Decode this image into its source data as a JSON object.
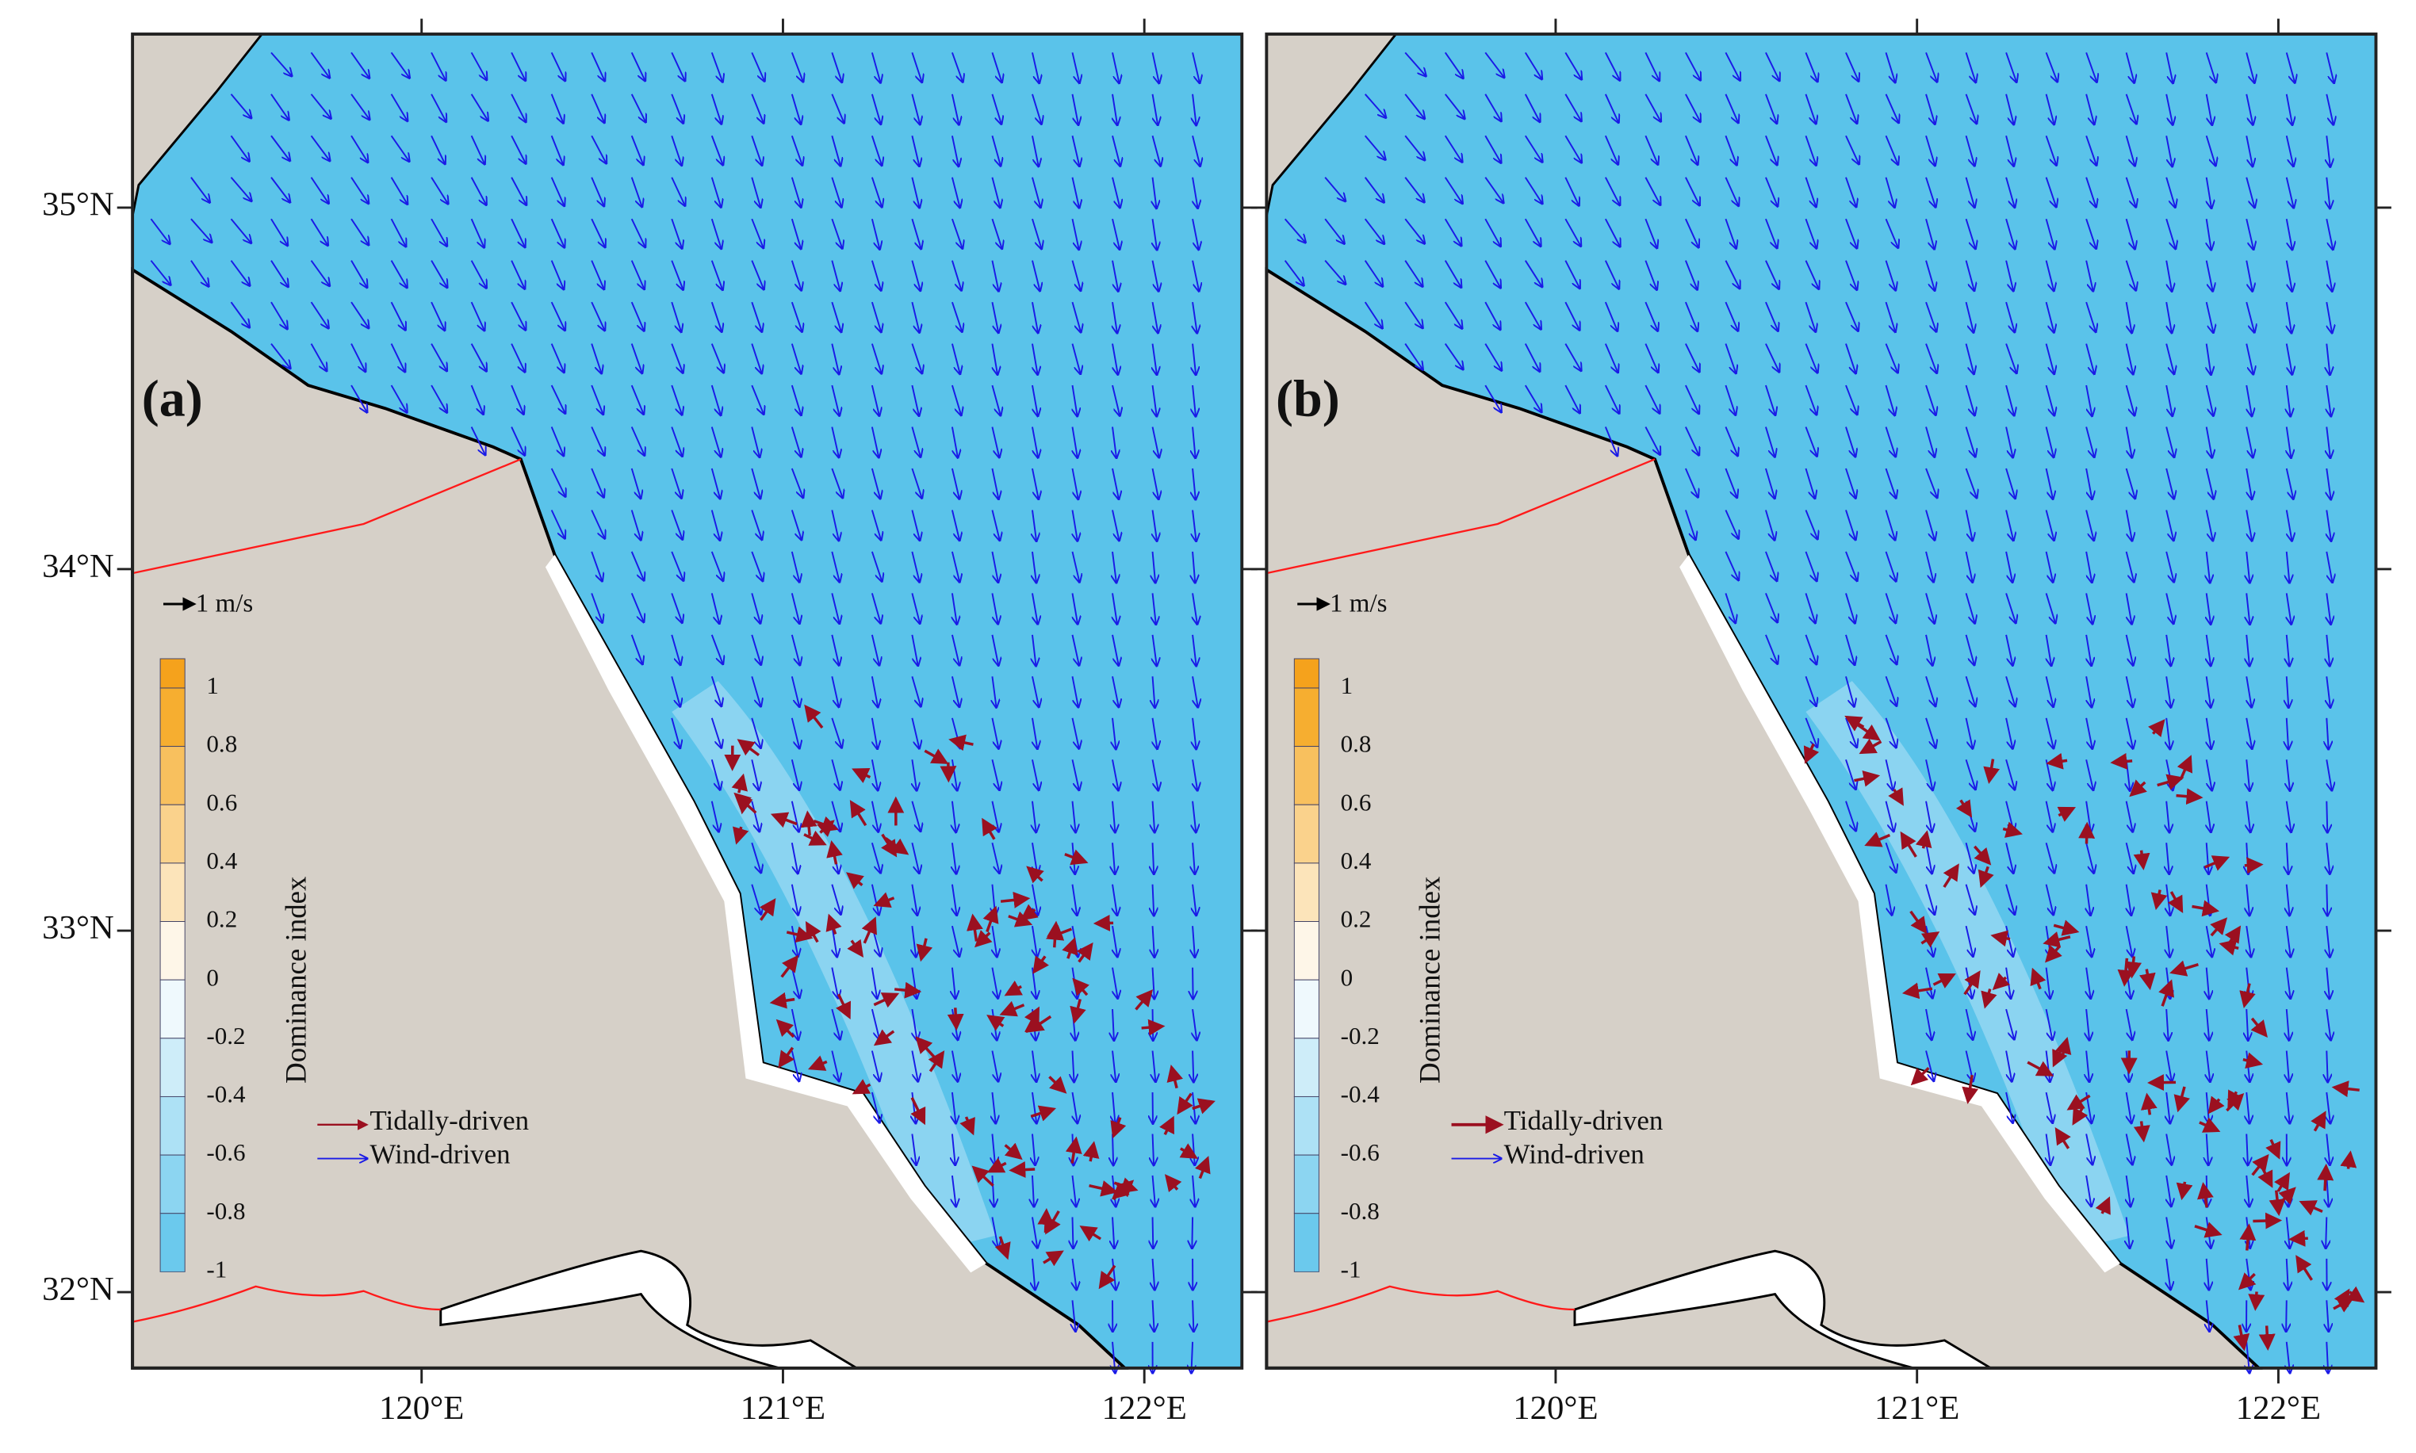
{
  "axes": {
    "lonlim": [
      119.2,
      122.27
    ],
    "latlim": [
      31.79,
      35.48
    ],
    "lat_ticks": [
      {
        "value": 35,
        "label": "35°N"
      },
      {
        "value": 34,
        "label": "34°N"
      },
      {
        "value": 33,
        "label": "33°N"
      },
      {
        "value": 32,
        "label": "32°N"
      }
    ],
    "lon_ticks": [
      {
        "value": 120,
        "label": "120°E"
      },
      {
        "value": 121,
        "label": "121°E"
      },
      {
        "value": 122,
        "label": "122°E"
      }
    ]
  },
  "panels": [
    {
      "label": "(a)",
      "scale_arrow": "1 m/s",
      "colorbar": {
        "title": "Dominance index",
        "ticks": [
          1,
          0.8,
          0.6,
          0.4,
          0.2,
          0,
          -0.2,
          -0.4,
          -0.6,
          -0.8,
          -1
        ]
      },
      "legend": [
        "Tidally-driven",
        "Wind-driven"
      ]
    },
    {
      "label": "(b)",
      "scale_arrow": "1 m/s",
      "colorbar": {
        "title": "Dominance index",
        "ticks": [
          1,
          0.8,
          0.6,
          0.4,
          0.2,
          0,
          -0.2,
          -0.4,
          -0.6,
          -0.8,
          -1
        ]
      },
      "legend": [
        "Tidally-driven",
        "Wind-driven"
      ]
    }
  ]
}
